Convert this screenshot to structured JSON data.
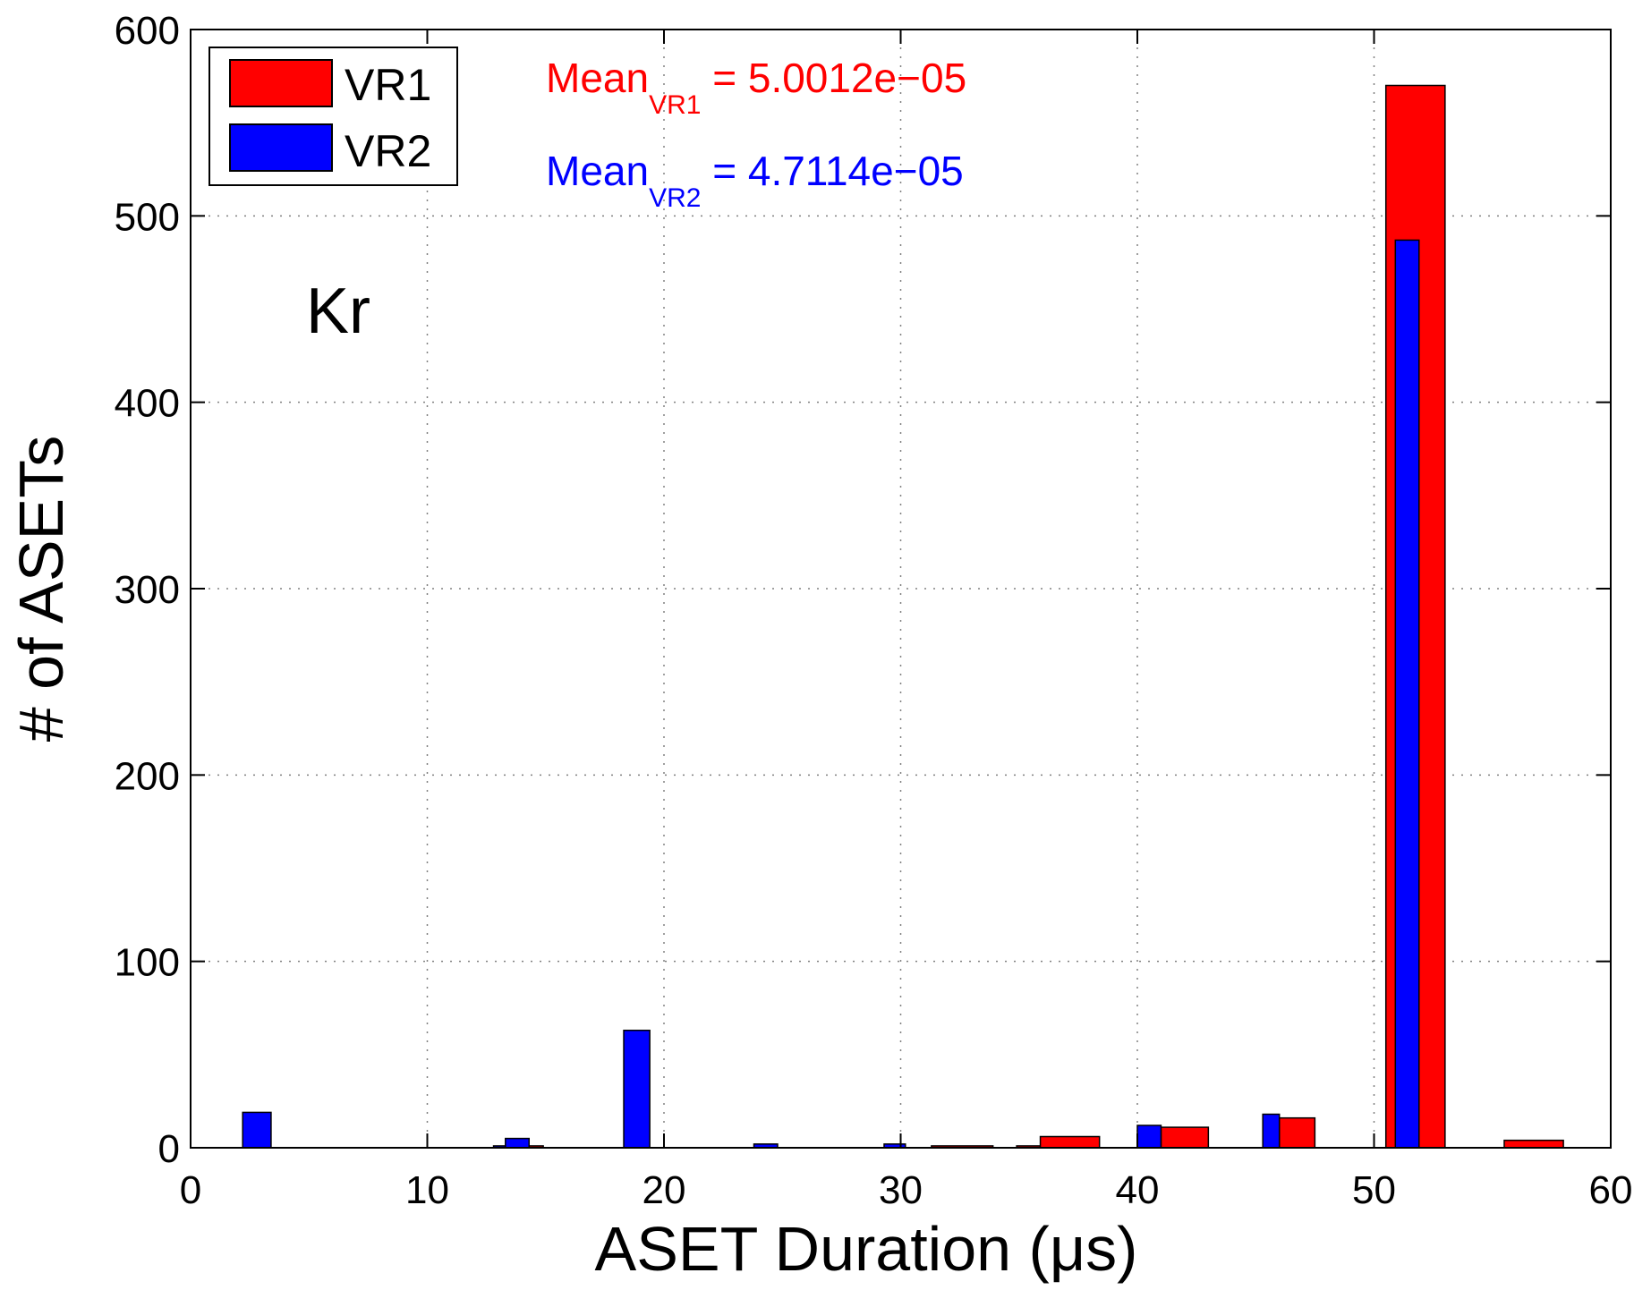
{
  "chart_data": {
    "type": "bar",
    "title": "",
    "xlabel": "ASET Duration (μs)",
    "ylabel": "# of ASETs",
    "xlim": [
      0,
      60
    ],
    "ylim": [
      0,
      600
    ],
    "xticks": [
      "0",
      "10",
      "20",
      "30",
      "40",
      "50",
      "60"
    ],
    "yticks": [
      "0",
      "100",
      "200",
      "300",
      "400",
      "500",
      "600"
    ],
    "grid": true,
    "legend": {
      "placement": "top-left",
      "entries": [
        "VR1",
        "VR2"
      ]
    },
    "series": [
      {
        "name": "VR1",
        "color": "#ff0000",
        "bins": [
          {
            "x0": 13.3,
            "x1": 14.9,
            "value": 1
          },
          {
            "x0": 31.3,
            "x1": 33.9,
            "value": 1
          },
          {
            "x0": 34.9,
            "x1": 35.9,
            "value": 1
          },
          {
            "x0": 35.9,
            "x1": 38.4,
            "value": 6
          },
          {
            "x0": 41.0,
            "x1": 43.0,
            "value": 11
          },
          {
            "x0": 46.0,
            "x1": 47.5,
            "value": 16
          },
          {
            "x0": 50.5,
            "x1": 53.0,
            "value": 570
          },
          {
            "x0": 55.5,
            "x1": 58.0,
            "value": 4
          }
        ]
      },
      {
        "name": "VR2",
        "color": "#0000ff",
        "bins": [
          {
            "x0": 2.2,
            "x1": 3.4,
            "value": 19
          },
          {
            "x0": 12.8,
            "x1": 13.3,
            "value": 1
          },
          {
            "x0": 13.3,
            "x1": 14.3,
            "value": 5
          },
          {
            "x0": 18.3,
            "x1": 19.4,
            "value": 63
          },
          {
            "x0": 23.8,
            "x1": 24.8,
            "value": 2
          },
          {
            "x0": 29.3,
            "x1": 30.2,
            "value": 2
          },
          {
            "x0": 40.0,
            "x1": 41.0,
            "value": 12
          },
          {
            "x0": 45.3,
            "x1": 46.0,
            "value": 18
          },
          {
            "x0": 50.9,
            "x1": 51.9,
            "value": 487
          }
        ]
      }
    ],
    "annotations": {
      "mean_vr1": {
        "main": "Mean",
        "sub": "VR1",
        "value": " = 5.0012e−05",
        "color": "#ff0000"
      },
      "mean_vr2": {
        "main": "Mean",
        "sub": "VR2",
        "value": " = 4.7114e−05",
        "color": "#0000ff"
      },
      "element": "Kr"
    }
  }
}
